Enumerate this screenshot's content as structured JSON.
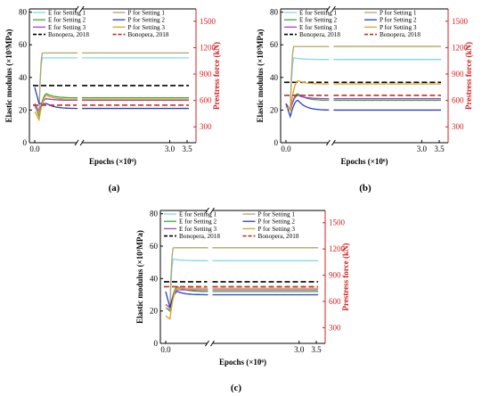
{
  "chart_data": [
    {
      "type": "line",
      "panel_label": "(a)",
      "xlabel": "Epochs (×10⁶)",
      "ylabel_left": "Elastic modulus (×10³MPa)",
      "ylabel_right": "Prestress force (kN)",
      "x_ticks": [
        "0.0",
        "3.0",
        "3.5"
      ],
      "left_ticks": [
        "0",
        "20",
        "40",
        "60",
        "80"
      ],
      "right_ticks": [
        "300",
        "600",
        "900",
        "1200",
        "1500"
      ],
      "ylim_left": [
        0,
        82
      ],
      "ylim_right": [
        120,
        1640
      ],
      "legend": {
        "left": [
          "E for Setting 1",
          "E for Setting 2",
          "E for Setting 3",
          "Bonopera, 2018"
        ],
        "right": [
          "P for Setting 1",
          "P for Setting 2",
          "P for Setting 3",
          "Bonopera, 2018"
        ]
      },
      "series": [
        {
          "name": "E for Setting 1",
          "color": "#7fd8f0",
          "dash": "",
          "start": 23,
          "dip": 19,
          "peak": 52,
          "final": 52,
          "fast": true
        },
        {
          "name": "E for Setting 2",
          "color": "#3ca83c",
          "dash": "",
          "start": 23,
          "dip": 16,
          "peak": 30,
          "final": 27.5
        },
        {
          "name": "E for Setting 3",
          "color": "#a040d0",
          "dash": "",
          "start": 24,
          "dip": 19,
          "peak": 27,
          "final": 26
        },
        {
          "name": "Bonopera, 2018",
          "color": "#000000",
          "dash": "6,3",
          "start": 35,
          "dip": 35,
          "peak": 35,
          "final": 35,
          "flat": true,
          "width": 1.6
        },
        {
          "name": "P for Setting 1",
          "color": "#b2a46a",
          "dash": "",
          "start": 22,
          "dip": 18,
          "peak": 55,
          "final": 55,
          "fast": true
        },
        {
          "name": "P for Setting 2",
          "color": "#2b3fb8",
          "dash": "",
          "start": 34,
          "dip": 24,
          "peak": 24,
          "final": 21
        },
        {
          "name": "P for Setting 3",
          "color": "#e0a020",
          "dash": "",
          "start": 19,
          "dip": 14,
          "peak": 29,
          "final": 26.5
        },
        {
          "name": "Bonopera, 2018 (P)",
          "color": "#c03020",
          "dash": "6,3",
          "start": 23,
          "dip": 23,
          "peak": 23,
          "final": 23,
          "flat": true,
          "width": 1.6
        }
      ]
    },
    {
      "type": "line",
      "panel_label": "(b)",
      "xlabel": "Epochs (×10⁶)",
      "ylabel_left": "Elastic modulus (×10³MPa)",
      "ylabel_right": "Prestress force (kN)",
      "x_ticks": [
        "0.0",
        "3.0",
        "3.5"
      ],
      "left_ticks": [
        "0",
        "20",
        "40",
        "60",
        "80"
      ],
      "right_ticks": [
        "300",
        "600",
        "900",
        "1200",
        "1500"
      ],
      "ylim_left": [
        0,
        82
      ],
      "ylim_right": [
        120,
        1640
      ],
      "legend": {
        "left": [
          "E for Setting 1",
          "E for Setting 2",
          "E for Setting 3",
          "Bonopera, 2018"
        ],
        "right": [
          "P for Setting 1",
          "P for Setting 2",
          "P for Setting 3",
          "Bonopera, 2018"
        ]
      },
      "series": [
        {
          "name": "E for Setting 1",
          "color": "#7fd8f0",
          "dash": "",
          "start": 22,
          "dip": 20,
          "peak": 52,
          "final": 51,
          "fast": true
        },
        {
          "name": "E for Setting 2",
          "color": "#3ca83c",
          "dash": "",
          "start": 22,
          "dip": 20,
          "peak": 30,
          "final": 26
        },
        {
          "name": "E for Setting 3",
          "color": "#a040d0",
          "dash": "",
          "start": 24,
          "dip": 20,
          "peak": 29,
          "final": 27
        },
        {
          "name": "Bonopera, 2018",
          "color": "#000000",
          "dash": "6,3",
          "start": 37,
          "dip": 37,
          "peak": 37,
          "final": 37,
          "flat": true,
          "width": 1.6
        },
        {
          "name": "P for Setting 1",
          "color": "#b2a46a",
          "dash": "",
          "start": 22,
          "dip": 21,
          "peak": 59,
          "final": 59,
          "fast": true
        },
        {
          "name": "P for Setting 2",
          "color": "#2b3fb8",
          "dash": "",
          "start": 24,
          "dip": 16,
          "peak": 26,
          "final": 20
        },
        {
          "name": "P for Setting 3",
          "color": "#e0a020",
          "dash": "",
          "start": 22,
          "dip": 20,
          "peak": 38,
          "final": 36
        },
        {
          "name": "Bonopera, 2018 (P)",
          "color": "#c03020",
          "dash": "6,3",
          "start": 29,
          "dip": 29,
          "peak": 29,
          "final": 29,
          "flat": true,
          "width": 1.6
        }
      ]
    },
    {
      "type": "line",
      "panel_label": "(c)",
      "xlabel": "Epochs (×10⁶)",
      "ylabel_left": "Elastic modulus (×10³MPa)",
      "ylabel_right": "Prestress force (kN)",
      "x_ticks": [
        "0.0",
        "3.0",
        "3.5"
      ],
      "left_ticks": [
        "0",
        "20",
        "40",
        "60",
        "80"
      ],
      "right_ticks": [
        "300",
        "600",
        "900",
        "1200",
        "1500"
      ],
      "ylim_left": [
        0,
        82
      ],
      "ylim_right": [
        120,
        1640
      ],
      "legend": {
        "left": [
          "E for Setting 1",
          "E for Setting 2",
          "E for Setting 3",
          "Bonopera, 2018"
        ],
        "right": [
          "P for Setting 1",
          "P for Setting 2",
          "P for Setting 3",
          "Bonopera, 2018"
        ]
      },
      "series": [
        {
          "name": "E for Setting 1",
          "color": "#7fd8f0",
          "dash": "",
          "start": 22,
          "dip": 20,
          "peak": 52,
          "final": 51,
          "fast": true
        },
        {
          "name": "E for Setting 2",
          "color": "#3ca83c",
          "dash": "",
          "start": 22,
          "dip": 20,
          "peak": 35,
          "final": 32
        },
        {
          "name": "E for Setting 3",
          "color": "#a040d0",
          "dash": "",
          "start": 24,
          "dip": 22,
          "peak": 33,
          "final": 33
        },
        {
          "name": "Bonopera, 2018",
          "color": "#000000",
          "dash": "6,3",
          "start": 38,
          "dip": 38,
          "peak": 38,
          "final": 38,
          "flat": true,
          "width": 1.6
        },
        {
          "name": "P for Setting 1",
          "color": "#b2a46a",
          "dash": "",
          "start": 22,
          "dip": 21,
          "peak": 59,
          "final": 59,
          "fast": true
        },
        {
          "name": "P for Setting 2",
          "color": "#2b3fb8",
          "dash": "",
          "start": 32,
          "dip": 22,
          "peak": 32,
          "final": 30
        },
        {
          "name": "P for Setting 3",
          "color": "#e0a020",
          "dash": "",
          "start": 17,
          "dip": 15,
          "peak": 34,
          "final": 34
        },
        {
          "name": "Bonopera, 2018 (P)",
          "color": "#c03020",
          "dash": "6,3",
          "start": 35,
          "dip": 35,
          "peak": 35,
          "final": 35,
          "flat": true,
          "width": 1.6
        }
      ]
    }
  ]
}
